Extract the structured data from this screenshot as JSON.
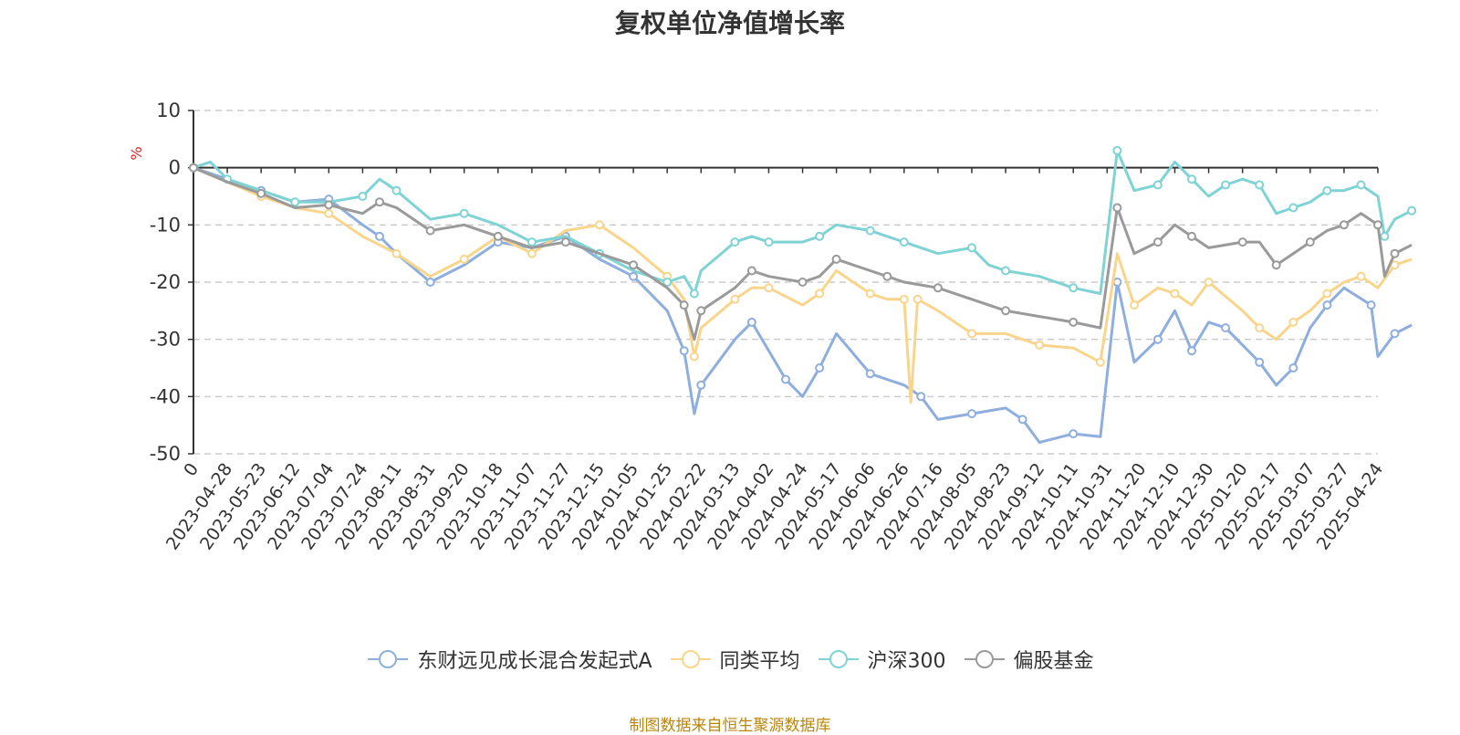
{
  "chart_data": {
    "type": "line",
    "title": "复权单位净值增长率",
    "ylabel": "%",
    "ylim": [
      -50,
      10
    ],
    "yticks": [
      10,
      0,
      -10,
      -20,
      -30,
      -40,
      -50
    ],
    "xlabels": [
      "0",
      "2023-04-28",
      "2023-05-23",
      "2023-06-12",
      "2023-07-04",
      "2023-07-24",
      "2023-08-11",
      "2023-08-31",
      "2023-09-20",
      "2023-10-18",
      "2023-11-07",
      "2023-11-27",
      "2023-12-15",
      "2024-01-05",
      "2024-01-25",
      "2024-02-22",
      "2024-03-13",
      "2024-04-02",
      "2024-04-24",
      "2024-05-17",
      "2024-06-06",
      "2024-06-26",
      "2024-07-16",
      "2024-08-05",
      "2024-08-23",
      "2024-09-12",
      "2024-10-11",
      "2024-10-31",
      "2024-11-20",
      "2024-12-10",
      "2024-12-30",
      "2025-01-20",
      "2025-02-17",
      "2025-03-07",
      "2025-03-27",
      "2025-04-24"
    ],
    "grid": true,
    "legend_position": "bottom",
    "x_index_range": [
      0,
      35
    ],
    "series": [
      {
        "name": "东财远见成长混合发起式A",
        "color": "#8eaedd",
        "values": [
          [
            0,
            0
          ],
          [
            1,
            -2
          ],
          [
            2,
            -4
          ],
          [
            3,
            -6
          ],
          [
            4,
            -5.5
          ],
          [
            5,
            -10
          ],
          [
            5.5,
            -12
          ],
          [
            6,
            -15
          ],
          [
            7,
            -20
          ],
          [
            8,
            -17
          ],
          [
            9,
            -13
          ],
          [
            10,
            -14
          ],
          [
            11,
            -12
          ],
          [
            12,
            -16
          ],
          [
            13,
            -19
          ],
          [
            14,
            -25
          ],
          [
            14.5,
            -32
          ],
          [
            14.8,
            -43
          ],
          [
            15,
            -38
          ],
          [
            16,
            -30
          ],
          [
            16.5,
            -27
          ],
          [
            17,
            -32
          ],
          [
            17.5,
            -37
          ],
          [
            18,
            -40
          ],
          [
            18.5,
            -35
          ],
          [
            19,
            -29
          ],
          [
            20,
            -36
          ],
          [
            21,
            -38
          ],
          [
            21.5,
            -40
          ],
          [
            22,
            -44
          ],
          [
            23,
            -43
          ],
          [
            24,
            -42
          ],
          [
            24.5,
            -44
          ],
          [
            25,
            -48
          ],
          [
            26,
            -46.5
          ],
          [
            26.8,
            -47
          ],
          [
            27.3,
            -20
          ],
          [
            27.8,
            -34
          ],
          [
            28.5,
            -30
          ],
          [
            29,
            -25
          ],
          [
            29.5,
            -32
          ],
          [
            30,
            -27
          ],
          [
            30.5,
            -28
          ],
          [
            31,
            -31
          ],
          [
            31.5,
            -34
          ],
          [
            32,
            -38
          ],
          [
            32.5,
            -35
          ],
          [
            33,
            -28
          ],
          [
            33.5,
            -24
          ],
          [
            34,
            -21
          ],
          [
            34.8,
            -24
          ],
          [
            35,
            -33
          ],
          [
            35.5,
            -29
          ],
          [
            36,
            -27.5
          ]
        ]
      },
      {
        "name": "同类平均",
        "color": "#f9d58b",
        "values": [
          [
            0,
            0
          ],
          [
            1,
            -2.5
          ],
          [
            2,
            -5
          ],
          [
            3,
            -7
          ],
          [
            4,
            -8
          ],
          [
            5,
            -12
          ],
          [
            6,
            -15
          ],
          [
            7,
            -19
          ],
          [
            8,
            -16
          ],
          [
            9,
            -12
          ],
          [
            10,
            -15
          ],
          [
            11,
            -11
          ],
          [
            12,
            -10
          ],
          [
            13,
            -14
          ],
          [
            14,
            -19
          ],
          [
            14.5,
            -23
          ],
          [
            14.8,
            -33
          ],
          [
            15,
            -28
          ],
          [
            16,
            -23
          ],
          [
            16.5,
            -21
          ],
          [
            17,
            -21
          ],
          [
            18,
            -24
          ],
          [
            18.5,
            -22
          ],
          [
            19,
            -18
          ],
          [
            20,
            -22
          ],
          [
            20.5,
            -23
          ],
          [
            21,
            -23
          ],
          [
            21.2,
            -41
          ],
          [
            21.4,
            -23
          ],
          [
            22,
            -25
          ],
          [
            23,
            -29
          ],
          [
            24,
            -29
          ],
          [
            25,
            -31
          ],
          [
            26,
            -31.5
          ],
          [
            26.8,
            -34
          ],
          [
            27.3,
            -15
          ],
          [
            27.8,
            -24
          ],
          [
            28.5,
            -21
          ],
          [
            29,
            -22
          ],
          [
            29.5,
            -24
          ],
          [
            30,
            -20
          ],
          [
            31,
            -25
          ],
          [
            31.5,
            -28
          ],
          [
            32,
            -30
          ],
          [
            32.5,
            -27
          ],
          [
            33,
            -25
          ],
          [
            33.5,
            -22
          ],
          [
            34,
            -20
          ],
          [
            34.5,
            -19
          ],
          [
            35,
            -21
          ],
          [
            35.5,
            -17
          ],
          [
            36,
            -16
          ]
        ]
      },
      {
        "name": "沪深300",
        "color": "#7fd3d4",
        "values": [
          [
            0,
            0
          ],
          [
            0.5,
            1
          ],
          [
            1,
            -2
          ],
          [
            2,
            -4
          ],
          [
            3,
            -6
          ],
          [
            4,
            -6
          ],
          [
            5,
            -5
          ],
          [
            5.5,
            -2
          ],
          [
            6,
            -4
          ],
          [
            7,
            -9
          ],
          [
            8,
            -8
          ],
          [
            9,
            -10
          ],
          [
            10,
            -13
          ],
          [
            11,
            -12
          ],
          [
            12,
            -15
          ],
          [
            13,
            -18
          ],
          [
            14,
            -20
          ],
          [
            14.5,
            -19
          ],
          [
            14.8,
            -22
          ],
          [
            15,
            -18
          ],
          [
            16,
            -13
          ],
          [
            16.5,
            -12
          ],
          [
            17,
            -13
          ],
          [
            18,
            -13
          ],
          [
            18.5,
            -12
          ],
          [
            19,
            -10
          ],
          [
            20,
            -11
          ],
          [
            20.5,
            -12
          ],
          [
            21,
            -13
          ],
          [
            22,
            -15
          ],
          [
            23,
            -14
          ],
          [
            23.5,
            -17
          ],
          [
            24,
            -18
          ],
          [
            25,
            -19
          ],
          [
            26,
            -21
          ],
          [
            26.8,
            -22
          ],
          [
            27.3,
            3
          ],
          [
            27.8,
            -4
          ],
          [
            28.5,
            -3
          ],
          [
            29,
            1
          ],
          [
            29.5,
            -2
          ],
          [
            30,
            -5
          ],
          [
            30.5,
            -3
          ],
          [
            31,
            -2
          ],
          [
            31.5,
            -3
          ],
          [
            32,
            -8
          ],
          [
            32.5,
            -7
          ],
          [
            33,
            -6
          ],
          [
            33.5,
            -4
          ],
          [
            34,
            -4
          ],
          [
            34.5,
            -3
          ],
          [
            35,
            -5
          ],
          [
            35.2,
            -12
          ],
          [
            35.5,
            -9
          ],
          [
            36,
            -7.5
          ]
        ]
      },
      {
        "name": "偏股基金",
        "color": "#9a9a9a",
        "values": [
          [
            0,
            0
          ],
          [
            1,
            -2.5
          ],
          [
            2,
            -4.5
          ],
          [
            3,
            -7
          ],
          [
            4,
            -6.5
          ],
          [
            5,
            -8
          ],
          [
            5.5,
            -6
          ],
          [
            6,
            -7
          ],
          [
            7,
            -11
          ],
          [
            8,
            -10
          ],
          [
            9,
            -12
          ],
          [
            10,
            -14
          ],
          [
            11,
            -13
          ],
          [
            12,
            -15
          ],
          [
            13,
            -17
          ],
          [
            14,
            -21
          ],
          [
            14.5,
            -24
          ],
          [
            14.8,
            -30
          ],
          [
            15,
            -25
          ],
          [
            16,
            -21
          ],
          [
            16.5,
            -18
          ],
          [
            17,
            -19
          ],
          [
            18,
            -20
          ],
          [
            18.5,
            -19
          ],
          [
            19,
            -16
          ],
          [
            20,
            -18
          ],
          [
            20.5,
            -19
          ],
          [
            21,
            -20
          ],
          [
            22,
            -21
          ],
          [
            23,
            -23
          ],
          [
            24,
            -25
          ],
          [
            25,
            -26
          ],
          [
            26,
            -27
          ],
          [
            26.8,
            -28
          ],
          [
            27.3,
            -7
          ],
          [
            27.8,
            -15
          ],
          [
            28.5,
            -13
          ],
          [
            29,
            -10
          ],
          [
            29.5,
            -12
          ],
          [
            30,
            -14
          ],
          [
            31,
            -13
          ],
          [
            31.5,
            -13
          ],
          [
            32,
            -17
          ],
          [
            32.5,
            -15
          ],
          [
            33,
            -13
          ],
          [
            33.5,
            -11
          ],
          [
            34,
            -10
          ],
          [
            34.5,
            -8
          ],
          [
            35,
            -10
          ],
          [
            35.2,
            -19
          ],
          [
            35.5,
            -15
          ],
          [
            36,
            -13.5
          ]
        ]
      }
    ]
  },
  "source_note": "制图数据来自恒生聚源数据库"
}
